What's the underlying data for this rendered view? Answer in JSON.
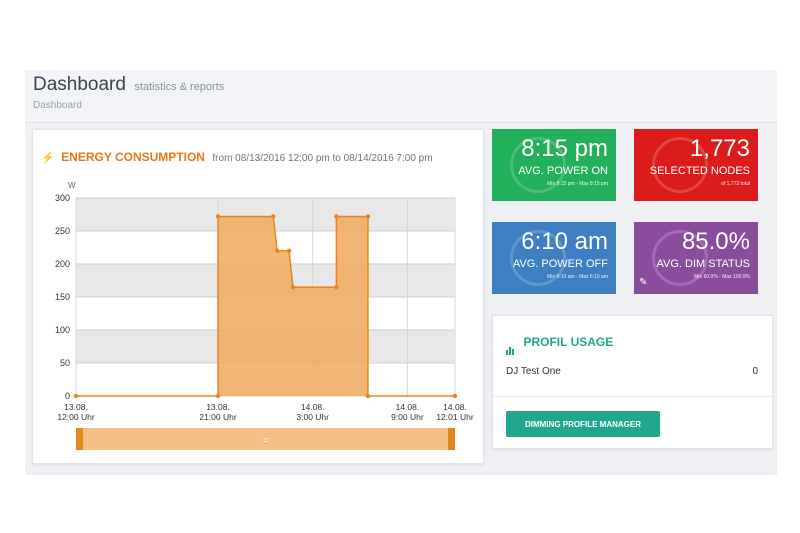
{
  "header": {
    "title": "Dashboard",
    "subtitle": "statistics & reports",
    "breadcrumb": "Dashboard"
  },
  "energy": {
    "icon": "bolt-icon",
    "title": "ENERGY CONSUMPTION",
    "range": "from 08/13/2016 12:00 pm to 08/14/2016 7:00 pm"
  },
  "chart_data": {
    "type": "area",
    "title": "ENERGY CONSUMPTION",
    "ylabel": "W",
    "xlabel": "",
    "ylim": [
      0,
      300
    ],
    "xlim": [
      "2016-08-13 12:00",
      "2016-08-14 12:01"
    ],
    "yticks": [
      0,
      50,
      100,
      150,
      200,
      250,
      300
    ],
    "xticks": [
      {
        "t": "2016-08-13 12:00",
        "line1": "13.08.",
        "line2": "12:00 Uhr"
      },
      {
        "t": "2016-08-13 21:00",
        "line1": "13.08.",
        "line2": "21:00 Uhr"
      },
      {
        "t": "2016-08-14 03:00",
        "line1": "14.08.",
        "line2": "3:00 Uhr"
      },
      {
        "t": "2016-08-14 09:00",
        "line1": "14.08.",
        "line2": "9:00 Uhr"
      },
      {
        "t": "2016-08-14 12:01",
        "line1": "14.08.",
        "line2": "12:01 Uhr"
      }
    ],
    "points": [
      {
        "t": "2016-08-13 12:00",
        "y": 0
      },
      {
        "t": "2016-08-13 21:00",
        "y": 0
      },
      {
        "t": "2016-08-13 21:00",
        "y": 272
      },
      {
        "t": "2016-08-14 00:30",
        "y": 272
      },
      {
        "t": "2016-08-14 00:45",
        "y": 220
      },
      {
        "t": "2016-08-14 01:30",
        "y": 220
      },
      {
        "t": "2016-08-14 01:45",
        "y": 165
      },
      {
        "t": "2016-08-14 04:30",
        "y": 165
      },
      {
        "t": "2016-08-14 04:30",
        "y": 272
      },
      {
        "t": "2016-08-14 06:30",
        "y": 272
      },
      {
        "t": "2016-08-14 06:30",
        "y": 0
      },
      {
        "t": "2016-08-14 12:01",
        "y": 0
      }
    ],
    "grid": true,
    "colors": {
      "fill": "#f0ad66",
      "line": "#e8861e",
      "band": "#e8e8e8",
      "navigator": "#f3bf87"
    },
    "navigator_handle": "="
  },
  "tiles": [
    {
      "value": "8:15 pm",
      "label": "AVG. POWER ON",
      "sub": "Min 8:15 pm - Max 8:15 pm",
      "color": "#22b05a"
    },
    {
      "value": "1,773",
      "label": "SELECTED NODES",
      "sub": "of 1,773 total",
      "color": "#dc1c1c"
    },
    {
      "value": "6:10 am",
      "label": "AVG. POWER OFF",
      "sub": "Min 6:10 am - Max 6:10 am",
      "color": "#3d7fc2"
    },
    {
      "value": "85.0%",
      "label": "AVG. DIM STATUS",
      "sub": "Min 60.0% - Max 100.0%",
      "color": "#8a4d9e",
      "icon": "pencil-icon"
    }
  ],
  "profile": {
    "icon": "bar-chart-icon",
    "title": "PROFIL USAGE",
    "rows": [
      {
        "name": "DJ Test One",
        "count": "0"
      }
    ],
    "button": "DIMMING PROFILE MANAGER"
  }
}
